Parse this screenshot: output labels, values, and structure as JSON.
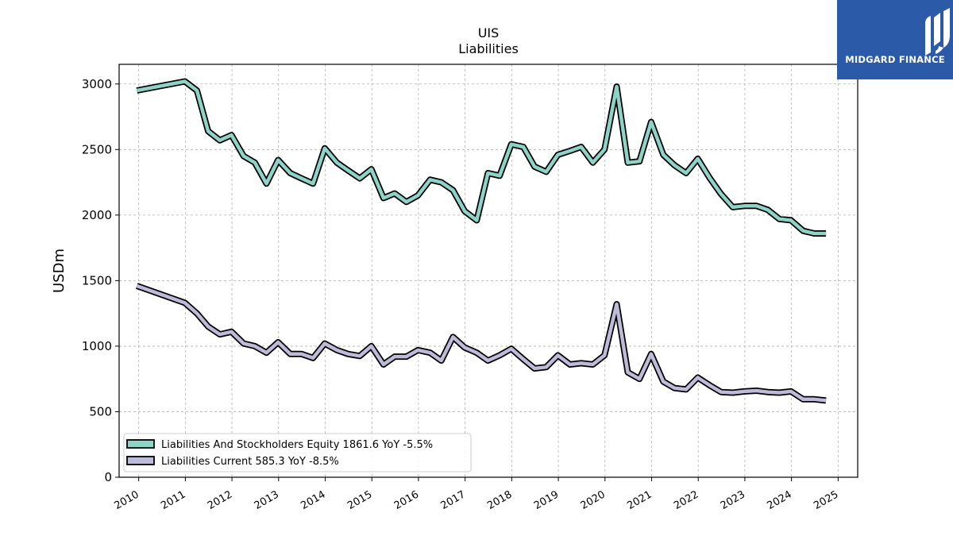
{
  "chart_data": {
    "type": "line",
    "title": "UIS",
    "subtitle": "Liabilities",
    "xlabel": "",
    "ylabel": "USDm",
    "xlim": [
      2009.58,
      2025.42
    ],
    "ylim": [
      0,
      3150
    ],
    "x_ticks": [
      2010,
      2011,
      2012,
      2013,
      2014,
      2015,
      2016,
      2017,
      2018,
      2019,
      2020,
      2021,
      2022,
      2023,
      2024,
      2025
    ],
    "y_ticks": [
      0,
      500,
      1000,
      1500,
      2000,
      2500,
      3000
    ],
    "grid": true,
    "legend_position": "lower-left",
    "series": [
      {
        "name": "Liabilities And Stockholders Equity",
        "legend_label": "Liabilities And Stockholders Equity  1861.6 YoY -5.5%",
        "color": "#8dd3c7",
        "x": [
          2009.96,
          2010.99,
          2011.25,
          2011.49,
          2011.74,
          2011.99,
          2012.25,
          2012.49,
          2012.74,
          2012.99,
          2013.25,
          2013.49,
          2013.74,
          2013.99,
          2014.25,
          2014.49,
          2014.74,
          2014.99,
          2015.25,
          2015.49,
          2015.74,
          2015.99,
          2016.25,
          2016.49,
          2016.74,
          2016.99,
          2017.25,
          2017.49,
          2017.74,
          2017.99,
          2018.25,
          2018.49,
          2018.74,
          2018.99,
          2019.25,
          2019.49,
          2019.74,
          2019.99,
          2020.25,
          2020.49,
          2020.74,
          2020.99,
          2021.25,
          2021.49,
          2021.74,
          2021.99,
          2022.25,
          2022.49,
          2022.74,
          2022.99,
          2023.25,
          2023.49,
          2023.74,
          2023.99,
          2024.25,
          2024.49,
          2024.74
        ],
        "values": [
          2950,
          3020,
          2950,
          2640,
          2570,
          2610,
          2450,
          2400,
          2240,
          2420,
          2320,
          2280,
          2240,
          2510,
          2400,
          2340,
          2280,
          2350,
          2130,
          2165,
          2100,
          2150,
          2270,
          2250,
          2190,
          2030,
          1960,
          2320,
          2300,
          2540,
          2520,
          2370,
          2330,
          2460,
          2490,
          2520,
          2400,
          2500,
          2980,
          2400,
          2410,
          2710,
          2460,
          2380,
          2320,
          2430,
          2280,
          2160,
          2060,
          2070,
          2070,
          2040,
          1970,
          1960,
          1880,
          1860,
          1860
        ]
      },
      {
        "name": "Liabilities Current",
        "legend_label": "Liabilities Current  585.3 YoY -8.5%",
        "color": "#bebada",
        "x": [
          2009.96,
          2010.99,
          2011.25,
          2011.49,
          2011.74,
          2011.99,
          2012.25,
          2012.49,
          2012.74,
          2012.99,
          2013.25,
          2013.49,
          2013.74,
          2013.99,
          2014.25,
          2014.49,
          2014.74,
          2014.99,
          2015.25,
          2015.49,
          2015.74,
          2015.99,
          2016.25,
          2016.49,
          2016.74,
          2016.99,
          2017.25,
          2017.49,
          2017.74,
          2017.99,
          2018.25,
          2018.49,
          2018.74,
          2018.99,
          2019.25,
          2019.49,
          2019.74,
          2019.99,
          2020.25,
          2020.49,
          2020.74,
          2020.99,
          2021.25,
          2021.49,
          2021.74,
          2021.99,
          2022.25,
          2022.49,
          2022.74,
          2022.99,
          2023.25,
          2023.49,
          2023.74,
          2023.99,
          2024.25,
          2024.49,
          2024.74
        ],
        "values": [
          1460,
          1330,
          1250,
          1150,
          1090,
          1110,
          1020,
          1000,
          950,
          1030,
          940,
          940,
          910,
          1020,
          970,
          940,
          925,
          1000,
          860,
          920,
          920,
          970,
          950,
          890,
          1070,
          990,
          950,
          890,
          930,
          980,
          900,
          830,
          840,
          930,
          860,
          870,
          860,
          930,
          1320,
          800,
          750,
          940,
          730,
          680,
          670,
          760,
          700,
          650,
          645,
          655,
          660,
          650,
          645,
          655,
          595,
          595,
          585
        ]
      }
    ]
  },
  "watermark": {
    "text": "MIDGARD FINANCE",
    "bg_color": "#2b5aa8"
  }
}
